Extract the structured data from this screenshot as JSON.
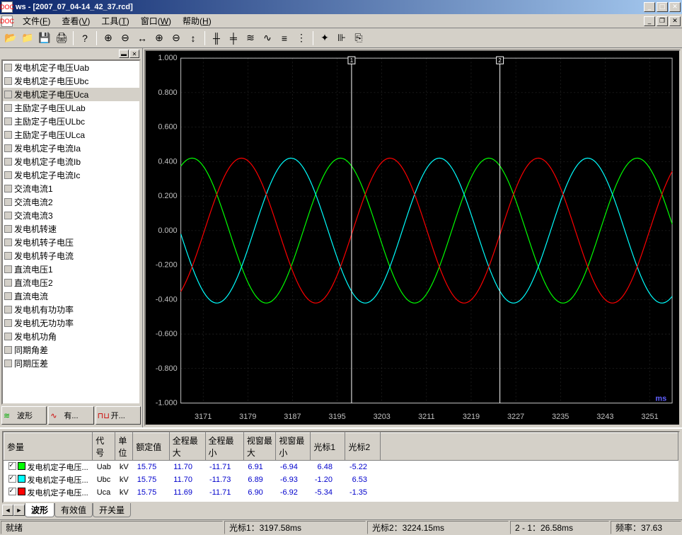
{
  "window": {
    "app_name": "ws",
    "document": "[2007_07_04-14_42_37.rcd]",
    "icon_text": "DOC"
  },
  "menu": {
    "items": [
      {
        "label": "文件",
        "key": "F"
      },
      {
        "label": "查看",
        "key": "V"
      },
      {
        "label": "工具",
        "key": "T"
      },
      {
        "label": "窗口",
        "key": "W"
      },
      {
        "label": "帮助",
        "key": "H"
      }
    ]
  },
  "toolbar": {
    "groups": [
      {
        "icons": [
          "open-icon",
          "open2-icon",
          "save-icon",
          "print-icon"
        ]
      },
      {
        "icons": [
          "help-icon"
        ]
      },
      {
        "icons": [
          "zoom-x-in-icon",
          "zoom-x-out-icon",
          "zoom-x-fit-icon",
          "zoom-y-in-icon",
          "zoom-y-out-icon",
          "zoom-y-fit-icon"
        ]
      },
      {
        "icons": [
          "cursor1-icon",
          "cursor2-icon",
          "wave-multi-icon",
          "wave-single-icon",
          "wave-split-icon",
          "wave-overlay-icon"
        ]
      },
      {
        "icons": [
          "vector-icon",
          "harmonic-icon",
          "export-icon"
        ]
      }
    ],
    "glyphs": {
      "open-icon": "📂",
      "open2-icon": "📁",
      "save-icon": "💾",
      "print-icon": "🖨",
      "help-icon": "?",
      "zoom-x-in-icon": "⊕",
      "zoom-x-out-icon": "⊖",
      "zoom-x-fit-icon": "↔",
      "zoom-y-in-icon": "⊕",
      "zoom-y-out-icon": "⊖",
      "zoom-y-fit-icon": "↕",
      "cursor1-icon": "╫",
      "cursor2-icon": "╪",
      "wave-multi-icon": "≋",
      "wave-single-icon": "∿",
      "wave-split-icon": "≡",
      "wave-overlay-icon": "⋮",
      "vector-icon": "✦",
      "harmonic-icon": "⊪",
      "export-icon": "⎘"
    }
  },
  "sidebar": {
    "channels": [
      {
        "label": "发电机定子电压Uab",
        "selected": false
      },
      {
        "label": "发电机定子电压Ubc",
        "selected": false
      },
      {
        "label": "发电机定子电压Uca",
        "selected": true
      },
      {
        "label": "主励定子电压ULab",
        "selected": false
      },
      {
        "label": "主励定子电压ULbc",
        "selected": false
      },
      {
        "label": "主励定子电压ULca",
        "selected": false
      },
      {
        "label": "发电机定子电流Ia",
        "selected": false
      },
      {
        "label": "发电机定子电流Ib",
        "selected": false
      },
      {
        "label": "发电机定子电流Ic",
        "selected": false
      },
      {
        "label": "交流电流1",
        "selected": false
      },
      {
        "label": "交流电流2",
        "selected": false
      },
      {
        "label": "交流电流3",
        "selected": false
      },
      {
        "label": "发电机转速",
        "selected": false
      },
      {
        "label": "发电机转子电压",
        "selected": false
      },
      {
        "label": "发电机转子电流",
        "selected": false
      },
      {
        "label": "直流电压1",
        "selected": false
      },
      {
        "label": "直流电压2",
        "selected": false
      },
      {
        "label": "直流电流",
        "selected": false
      },
      {
        "label": "发电机有功功率",
        "selected": false
      },
      {
        "label": "发电机无功功率",
        "selected": false
      },
      {
        "label": "发电机功角",
        "selected": false
      },
      {
        "label": "同期角差",
        "selected": false
      },
      {
        "label": "同期压差",
        "selected": false
      }
    ],
    "tabs": [
      {
        "label": "波形",
        "icon": "≋",
        "icon_color": "#00aa00"
      },
      {
        "label": "有...",
        "icon": "∿",
        "icon_color": "#cc0000"
      },
      {
        "label": "开...",
        "icon": "⊓⊔",
        "icon_color": "#cc0000"
      }
    ]
  },
  "chart": {
    "background": "#000000",
    "grid_color": "#333333",
    "axis_color": "#c0c0c0",
    "text_color": "#c0c0c0",
    "cursor_color": "#ffffff",
    "x_unit_label": "ms",
    "x_unit_color": "#6060ff",
    "ylim": [
      -1.0,
      1.0
    ],
    "ytick_step": 0.2,
    "yticks": [
      "1.000",
      "0.800",
      "0.600",
      "0.400",
      "0.200",
      "0.000",
      "-0.200",
      "-0.400",
      "-0.600",
      "-0.800",
      "-1.000"
    ],
    "xlim": [
      3167,
      3255
    ],
    "xticks": [
      3171,
      3179,
      3187,
      3195,
      3203,
      3211,
      3219,
      3227,
      3235,
      3243,
      3251
    ],
    "cursor1_x": 3197.58,
    "cursor2_x": 3224.15,
    "cursor1_label": "1",
    "cursor2_label": "2",
    "series": [
      {
        "name": "Uab",
        "color": "#00ff00",
        "amplitude": 0.42,
        "phase_deg": 0,
        "freq_hz": 37.63
      },
      {
        "name": "Ubc",
        "color": "#00ffff",
        "amplitude": 0.42,
        "phase_deg": 120,
        "freq_hz": 37.63
      },
      {
        "name": "Uca",
        "color": "#ff0000",
        "amplitude": 0.42,
        "phase_deg": 240,
        "freq_hz": 37.63
      }
    ],
    "line_width": 1.2
  },
  "datatable": {
    "columns": [
      "参量",
      "代号",
      "单位",
      "额定值",
      "全程最大",
      "全程最小",
      "视窗最大",
      "视窗最小",
      "光标1",
      "光标2"
    ],
    "rows": [
      {
        "color": "#00ff00",
        "name": "发电机定子电压...",
        "code": "Uab",
        "unit": "kV",
        "rated": "15.75",
        "max_all": "11.70",
        "min_all": "-11.71",
        "max_win": "6.91",
        "min_win": "-6.94",
        "c1": "6.48",
        "c2": "-5.22"
      },
      {
        "color": "#00ffff",
        "name": "发电机定子电压...",
        "code": "Ubc",
        "unit": "kV",
        "rated": "15.75",
        "max_all": "11.70",
        "min_all": "-11.73",
        "max_win": "6.89",
        "min_win": "-6.93",
        "c1": "-1.20",
        "c2": "6.53"
      },
      {
        "color": "#ff0000",
        "name": "发电机定子电压...",
        "code": "Uca",
        "unit": "kV",
        "rated": "15.75",
        "max_all": "11.69",
        "min_all": "-11.71",
        "max_win": "6.90",
        "min_win": "-6.92",
        "c1": "-5.34",
        "c2": "-1.35"
      }
    ],
    "tabs": [
      "波形",
      "有效值",
      "开关量"
    ],
    "active_tab": 0
  },
  "statusbar": {
    "ready": "就绪",
    "cursor1": "光标1：3197.58ms",
    "cursor2": "光标2：3224.15ms",
    "delta": "2 - 1：26.58ms",
    "freq": "频率：37.63"
  }
}
